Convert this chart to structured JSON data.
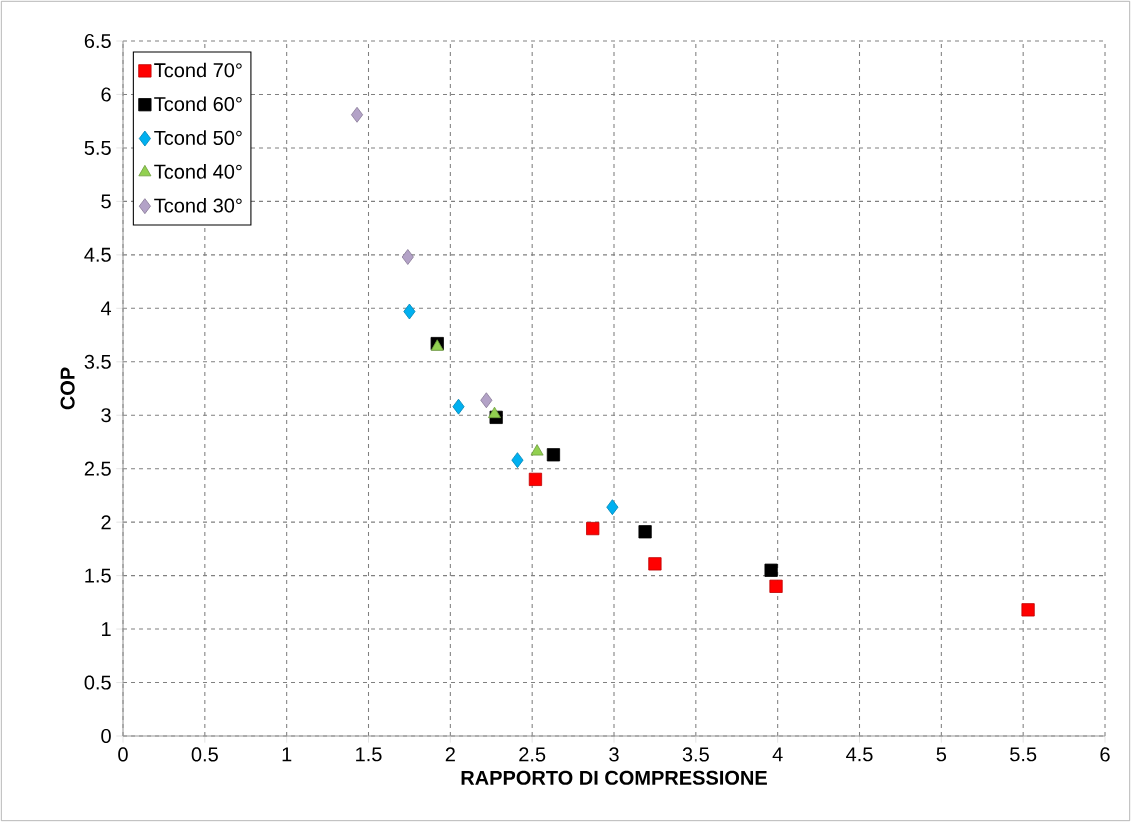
{
  "chart_data": {
    "type": "scatter",
    "xlabel": "RAPPORTO DI COMPRESSIONE",
    "ylabel": "COP",
    "xlim": [
      0,
      6
    ],
    "xticks": [
      0,
      0.5,
      1,
      1.5,
      2,
      2.5,
      3,
      3.5,
      4,
      4.5,
      5,
      5.5,
      6
    ],
    "ylim": [
      0,
      6.5
    ],
    "yticks": [
      0,
      0.5,
      1,
      1.5,
      2,
      2.5,
      3,
      3.5,
      4,
      4.5,
      5,
      5.5,
      6,
      6.5
    ],
    "grid": true,
    "legend": "top left",
    "series": [
      {
        "name": "Tcond 70°",
        "color": "#ff0000",
        "marker": "square",
        "x": [
          2.52,
          2.87,
          3.25,
          3.99,
          5.53
        ],
        "values": [
          2.4,
          1.94,
          1.61,
          1.4,
          1.18
        ]
      },
      {
        "name": "Tcond 60°",
        "color": "#000000",
        "marker": "square",
        "x": [
          1.92,
          2.28,
          2.63,
          3.19,
          3.96
        ],
        "values": [
          3.67,
          2.98,
          2.63,
          1.91,
          1.55
        ]
      },
      {
        "name": "Tcond 50°",
        "color": "#00b0f0",
        "marker": "diamond",
        "x": [
          1.75,
          2.05,
          2.41,
          2.99
        ],
        "values": [
          3.97,
          3.08,
          2.58,
          2.14
        ]
      },
      {
        "name": "Tcond 40°",
        "color": "#92d050",
        "marker": "triangle",
        "x": [
          1.92,
          2.27,
          2.53
        ],
        "values": [
          3.64,
          3.01,
          2.66
        ]
      },
      {
        "name": "Tcond 30°",
        "color": "#b3a2c7",
        "marker": "diamond",
        "x": [
          1.43,
          1.74,
          2.22
        ],
        "values": [
          5.81,
          4.48,
          3.14
        ]
      }
    ]
  }
}
